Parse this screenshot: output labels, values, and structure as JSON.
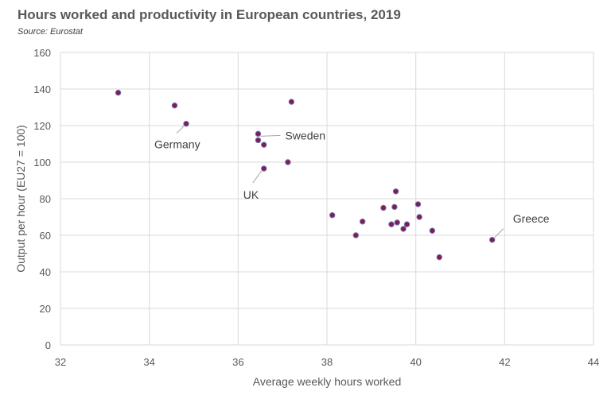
{
  "title": "Hours worked and productivity in European countries, 2019",
  "source": "Source: Eurostat",
  "chart_data": {
    "type": "scatter",
    "title": "Hours worked and productivity in European countries, 2019",
    "xlabel": "Average weekly hours worked",
    "ylabel": "Output per hour (EU27 = 100)",
    "xlim": [
      32,
      44
    ],
    "ylim": [
      0,
      160
    ],
    "x_ticks": [
      "32",
      "34",
      "36",
      "38",
      "40",
      "42",
      "44"
    ],
    "y_ticks": [
      "0",
      "20",
      "40",
      "60",
      "80",
      "100",
      "120",
      "140",
      "160"
    ],
    "grid": true,
    "legend": "none",
    "marker_color": "#7f1d4f",
    "marker_edge_color": "#6f6fb0",
    "points": [
      {
        "x": 33.3,
        "y": 138
      },
      {
        "x": 34.57,
        "y": 131
      },
      {
        "x": 34.83,
        "y": 121
      },
      {
        "x": 36.45,
        "y": 115.5
      },
      {
        "x": 36.45,
        "y": 112
      },
      {
        "x": 36.58,
        "y": 109.5
      },
      {
        "x": 37.2,
        "y": 133
      },
      {
        "x": 37.12,
        "y": 100
      },
      {
        "x": 36.58,
        "y": 96.5
      },
      {
        "x": 38.12,
        "y": 71
      },
      {
        "x": 38.65,
        "y": 60
      },
      {
        "x": 38.8,
        "y": 67.5
      },
      {
        "x": 39.27,
        "y": 75
      },
      {
        "x": 39.45,
        "y": 66
      },
      {
        "x": 39.52,
        "y": 75.5
      },
      {
        "x": 39.55,
        "y": 84
      },
      {
        "x": 39.58,
        "y": 67
      },
      {
        "x": 39.72,
        "y": 63.5
      },
      {
        "x": 39.8,
        "y": 66
      },
      {
        "x": 40.05,
        "y": 77
      },
      {
        "x": 40.08,
        "y": 70
      },
      {
        "x": 40.37,
        "y": 62.5
      },
      {
        "x": 40.53,
        "y": 48
      },
      {
        "x": 41.72,
        "y": 57.5
      }
    ],
    "annotations": [
      {
        "text": "Germany",
        "x": 34.83,
        "y": 121
      },
      {
        "text": "Sweden",
        "x": 36.45,
        "y": 115.5
      },
      {
        "text": "UK",
        "x": 36.58,
        "y": 96.5
      },
      {
        "text": "Greece",
        "x": 41.72,
        "y": 57.5
      }
    ]
  }
}
